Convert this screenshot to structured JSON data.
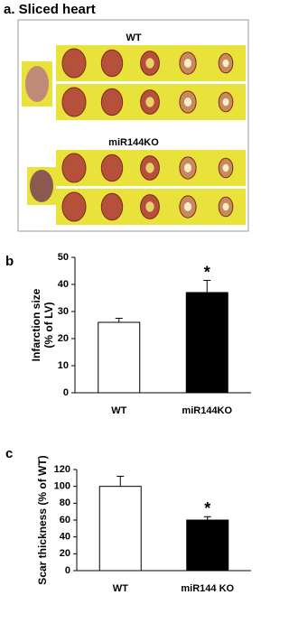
{
  "panel_a": {
    "title": "a. Sliced heart",
    "group_labels": [
      "WT",
      "miR144KO"
    ]
  },
  "chart_data": [
    {
      "type": "bar",
      "panel_label": "b",
      "y_label_lines": [
        "Infarction size",
        "(% of LV)"
      ],
      "categories": [
        "WT",
        "miR144KO"
      ],
      "values": [
        26,
        37
      ],
      "errors": [
        1.5,
        4.5
      ],
      "significance_labels": [
        null,
        "*"
      ],
      "colors": [
        "#ffffff",
        "#000000"
      ],
      "ylim": [
        0,
        50
      ],
      "yticks": [
        0,
        10,
        20,
        30,
        40,
        50
      ],
      "grid": false
    },
    {
      "type": "bar",
      "panel_label": "c",
      "y_label_lines": [
        "Scar thickness (% of WT)"
      ],
      "categories": [
        "WT",
        "miR144 KO"
      ],
      "values": [
        100,
        60
      ],
      "errors": [
        12,
        4
      ],
      "significance_labels": [
        null,
        "*"
      ],
      "colors": [
        "#ffffff",
        "#000000"
      ],
      "ylim": [
        0,
        120
      ],
      "yticks": [
        0,
        20,
        40,
        60,
        80,
        100,
        120
      ],
      "grid": false
    }
  ]
}
